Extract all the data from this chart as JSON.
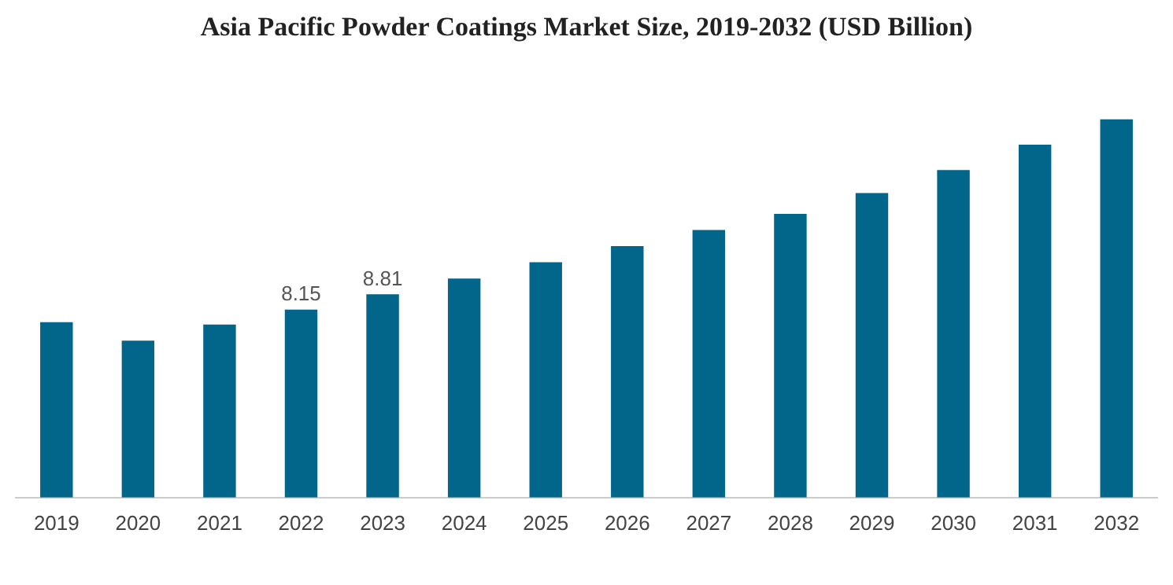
{
  "chart_data": {
    "type": "bar",
    "title": "Asia Pacific Powder Coatings Market Size, 2019-2032 (USD Billion)",
    "categories": [
      "2019",
      "2020",
      "2021",
      "2022",
      "2023",
      "2024",
      "2025",
      "2026",
      "2027",
      "2028",
      "2029",
      "2030",
      "2031",
      "2032"
    ],
    "values": [
      7.6,
      6.8,
      7.5,
      8.15,
      8.81,
      9.5,
      10.2,
      10.9,
      11.6,
      12.3,
      13.2,
      14.2,
      15.3,
      16.4
    ],
    "value_labels": [
      null,
      null,
      null,
      "8.15",
      "8.81",
      null,
      null,
      null,
      null,
      null,
      null,
      null,
      null,
      null
    ],
    "color": "#02658a",
    "tick_labels": "x",
    "grid": false,
    "legend": false
  }
}
